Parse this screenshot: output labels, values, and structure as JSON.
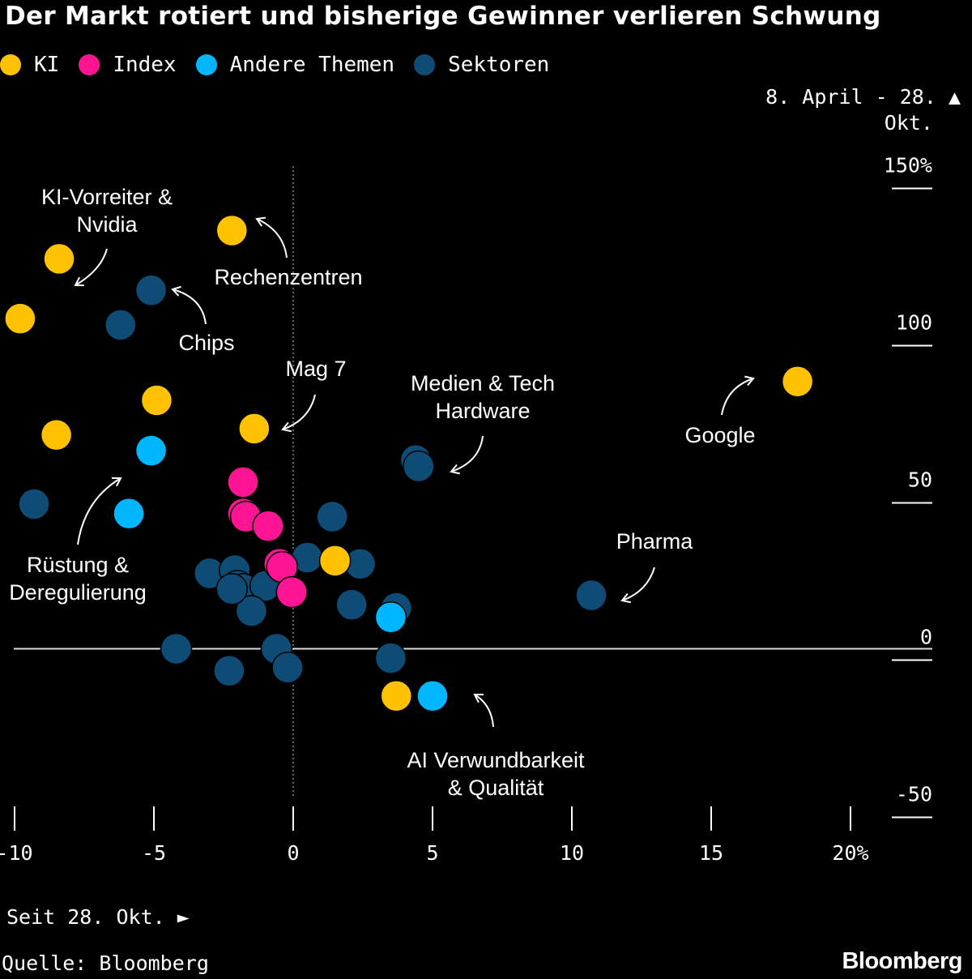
{
  "title": "Der Markt rotiert und bisherige Gewinner verlieren Schwung",
  "legend": [
    {
      "label": "KI",
      "color": "#ffc200"
    },
    {
      "label": "Index",
      "color": "#ff1493"
    },
    {
      "label": "Andere Themen",
      "color": "#00b7ff"
    },
    {
      "label": "Sektoren",
      "color": "#0f4c75"
    }
  ],
  "y_range_note": {
    "line1": "8. April - 28.",
    "line2": "Okt.",
    "arrow": "▲"
  },
  "x_range_note": "Seit 28. Okt. ►",
  "source": "Quelle: Bloomberg",
  "brand": "Bloomberg",
  "chart_data": {
    "type": "scatter",
    "title": "Der Markt rotiert und bisherige Gewinner verlieren Schwung",
    "xlabel": "Seit 28. Okt.",
    "ylabel": "8. April - 28. Okt.",
    "xlim": [
      -10,
      20
    ],
    "ylim": [
      -50,
      150
    ],
    "x_ticks": [
      {
        "value": -10,
        "label": "-10"
      },
      {
        "value": -5,
        "label": "-5"
      },
      {
        "value": 0,
        "label": "0"
      },
      {
        "value": 5,
        "label": "5"
      },
      {
        "value": 10,
        "label": "10"
      },
      {
        "value": 15,
        "label": "15"
      },
      {
        "value": 20,
        "label": "20%"
      }
    ],
    "y_ticks": [
      {
        "value": 150,
        "label": "150%"
      },
      {
        "value": 100,
        "label": "100"
      },
      {
        "value": 50,
        "label": "50"
      },
      {
        "value": 0,
        "label": "0"
      },
      {
        "value": -50,
        "label": "-50"
      }
    ],
    "series": [
      {
        "name": "Sektoren",
        "color": "#0f4c75",
        "points": [
          [
            -9.3,
            46
          ],
          [
            -6.2,
            103
          ],
          [
            -5.1,
            114
          ],
          [
            4.4,
            60
          ],
          [
            4.5,
            58
          ],
          [
            10.7,
            17
          ],
          [
            1.4,
            42
          ],
          [
            0.5,
            29
          ],
          [
            2.4,
            27
          ],
          [
            3.7,
            13
          ],
          [
            2.1,
            14
          ],
          [
            -3.0,
            24
          ],
          [
            -2.1,
            25
          ],
          [
            -2.0,
            20
          ],
          [
            -1.8,
            19
          ],
          [
            -1.0,
            20
          ],
          [
            -1.5,
            12
          ],
          [
            -4.2,
            0
          ],
          [
            -0.6,
            0
          ],
          [
            -0.2,
            -6
          ],
          [
            -2.3,
            -7
          ],
          [
            3.5,
            -3
          ],
          [
            -2.2,
            19
          ]
        ]
      },
      {
        "name": "KI",
        "color": "#ffc200",
        "points": [
          [
            -9.8,
            105
          ],
          [
            -8.4,
            124
          ],
          [
            -2.2,
            133
          ],
          [
            -8.5,
            68
          ],
          [
            -4.9,
            79
          ],
          [
            -1.4,
            70
          ],
          [
            18.1,
            85
          ],
          [
            1.5,
            28
          ],
          [
            3.7,
            -15
          ]
        ]
      },
      {
        "name": "Andere Themen",
        "color": "#00b7ff",
        "points": [
          [
            -5.1,
            63
          ],
          [
            -5.9,
            43
          ],
          [
            3.5,
            10
          ],
          [
            5.0,
            -15
          ]
        ]
      },
      {
        "name": "Index",
        "color": "#ff1493",
        "points": [
          [
            -1.8,
            53
          ],
          [
            -1.8,
            43
          ],
          [
            -1.7,
            42
          ],
          [
            -0.9,
            39
          ],
          [
            -0.5,
            27
          ],
          [
            -0.4,
            26
          ],
          [
            -0.05,
            18
          ]
        ]
      }
    ],
    "annotations": [
      {
        "lines": [
          "KI-Vorreiter &",
          "Nvidia"
        ]
      },
      {
        "lines": [
          "Rechenzentren"
        ]
      },
      {
        "lines": [
          "Chips"
        ]
      },
      {
        "lines": [
          "Mag 7"
        ]
      },
      {
        "lines": [
          "Medien & Tech",
          "Hardware"
        ]
      },
      {
        "lines": [
          "Google"
        ]
      },
      {
        "lines": [
          "Rüstung &",
          "Deregulierung"
        ]
      },
      {
        "lines": [
          "Pharma"
        ]
      },
      {
        "lines": [
          "AI Verwundbarkeit",
          "& Qualität"
        ]
      }
    ]
  }
}
